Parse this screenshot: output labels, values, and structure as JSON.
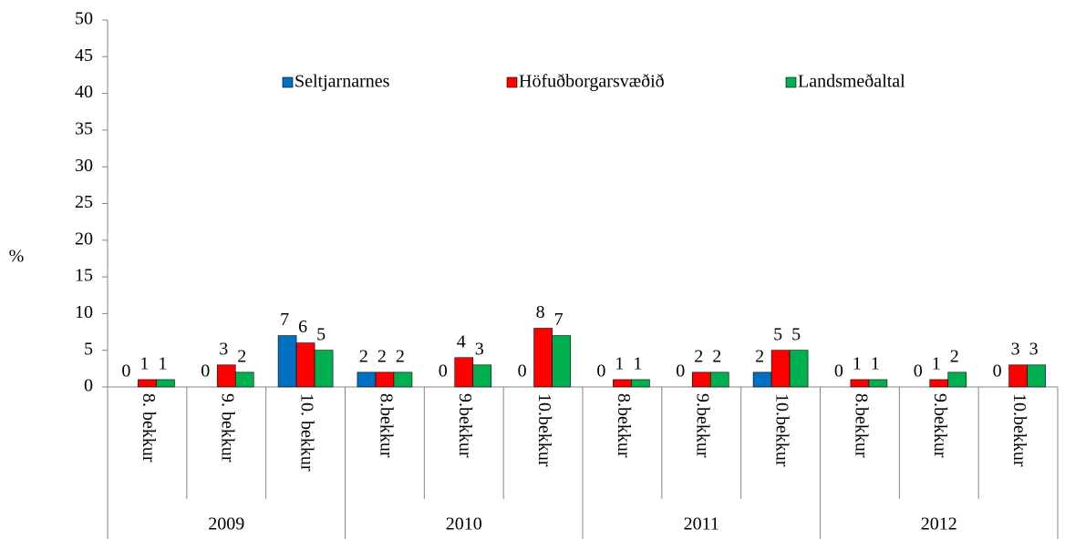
{
  "chart_data": {
    "type": "bar",
    "y_label": "%",
    "categories": [
      "8. bekkur",
      "9. bekkur",
      "10. bekkur",
      "8.bekkur",
      "9.bekkur",
      "10.bekkur",
      "8.bekkur",
      "9.bekkur",
      "10.bekkur",
      "8.bekkur",
      "9.bekkur",
      "10.bekkur"
    ],
    "groups": [
      "2009",
      "2010",
      "2011",
      "2012"
    ],
    "series": [
      {
        "name": "Seltjarnarnes",
        "color": "#0070c0",
        "values": [
          0,
          0,
          7,
          2,
          0,
          0,
          0,
          0,
          2,
          0,
          0,
          0
        ]
      },
      {
        "name": "Höfuðborgarsvæðið",
        "color": "#ff0000",
        "values": [
          1,
          3,
          6,
          2,
          4,
          8,
          1,
          2,
          5,
          1,
          1,
          3
        ]
      },
      {
        "name": "Landsmeðaltal",
        "color": "#00b050",
        "values": [
          1,
          2,
          5,
          2,
          3,
          7,
          1,
          2,
          5,
          1,
          2,
          3
        ]
      }
    ],
    "ylim": [
      0,
      50
    ],
    "yticks": [
      0,
      5,
      10,
      15,
      20,
      25,
      30,
      35,
      40,
      45,
      50
    ]
  }
}
